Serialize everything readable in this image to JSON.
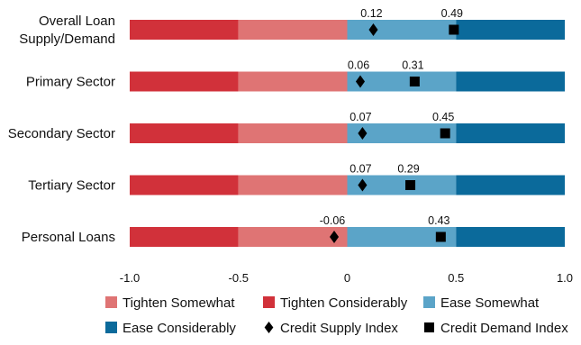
{
  "chart_data": {
    "type": "bar",
    "orientation": "horizontal",
    "categories": [
      "Overall Loan Supply/Demand",
      "Primary Sector",
      "Secondary Sector",
      "Tertiary Sector",
      "Personal Loans"
    ],
    "category_lines": [
      [
        "Overall Loan",
        "Supply/Demand"
      ],
      [
        "Primary Sector"
      ],
      [
        "Secondary Sector"
      ],
      [
        "Tertiary Sector"
      ],
      [
        "Personal Loans"
      ]
    ],
    "xlim": [
      -1.0,
      1.0
    ],
    "xticks": [
      -1.0,
      -0.5,
      0,
      0.5,
      1.0
    ],
    "xtick_labels": [
      "-1.0",
      "-0.5",
      "0",
      "0.5",
      "1.0"
    ],
    "background_bands": [
      {
        "name": "Tighten Considerably",
        "from": -1.0,
        "to": -0.5,
        "color": "#d1313a"
      },
      {
        "name": "Tighten Somewhat",
        "from": -0.5,
        "to": 0,
        "color": "#df7474"
      },
      {
        "name": "Ease Somewhat",
        "from": 0,
        "to": 0.5,
        "color": "#5ba4c8"
      },
      {
        "name": "Ease Considerably",
        "from": 0.5,
        "to": 1.0,
        "color": "#0b6a9b"
      }
    ],
    "series": [
      {
        "name": "Credit Supply Index",
        "marker": "diamond",
        "values": [
          0.12,
          0.06,
          0.07,
          0.07,
          -0.06
        ],
        "labels": [
          "0.12",
          "0.06",
          "0.07",
          "0.07",
          "-0.06"
        ]
      },
      {
        "name": "Credit Demand Index",
        "marker": "square",
        "values": [
          0.49,
          0.31,
          0.45,
          0.29,
          0.43
        ],
        "labels": [
          "0.49",
          "0.31",
          "0.45",
          "0.29",
          "0.43"
        ]
      }
    ],
    "legend": {
      "placement": "bottom",
      "items": [
        {
          "label": "Tighten Somewhat",
          "kind": "swatch",
          "color": "#df7474"
        },
        {
          "label": "Tighten Considerably",
          "kind": "swatch",
          "color": "#d1313a"
        },
        {
          "label": "Ease Somewhat",
          "kind": "swatch",
          "color": "#5ba4c8"
        },
        {
          "label": "Ease Considerably",
          "kind": "swatch",
          "color": "#0b6a9b"
        },
        {
          "label": "Credit Supply Index",
          "kind": "diamond",
          "color": "#000000"
        },
        {
          "label": "Credit Demand Index",
          "kind": "square",
          "color": "#000000"
        }
      ]
    }
  }
}
